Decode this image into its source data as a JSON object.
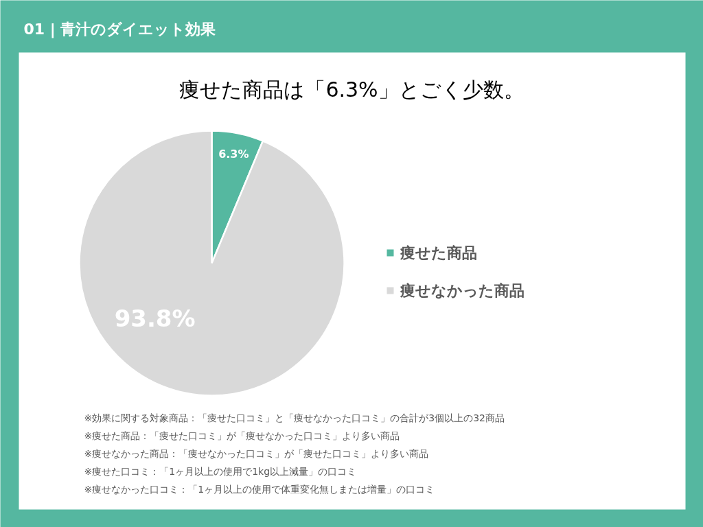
{
  "chart_data": {
    "type": "pie",
    "title": "01 | 青汁のダイエット効果",
    "subtitle": "痩せた商品は「6.3%」とごく少数。",
    "categories": [
      "痩せた商品",
      "痩せなかった商品"
    ],
    "values": [
      6.3,
      93.8
    ],
    "colors": [
      "#55b8a0",
      "#d9d9d9"
    ],
    "value_labels": [
      "6.3%",
      "93.8%"
    ],
    "legend": "right",
    "annotations": [
      "※効果に関する対象商品：「痩せた口コミ」と「痩せなかった口コミ」の合計が3個以上の32商品",
      "※痩せた商品：「痩せた口コミ」が「痩せなかった口コミ」より多い商品",
      "※痩せなかった商品：「痩せなかった口コミ」が「痩せた口コミ」より多い商品",
      "※痩せた口コミ：「1ヶ月以上の使用で1kg以上減量」の口コミ",
      "※痩せなかった口コミ：「1ヶ月以上の使用で体重変化無しまたは増量」の口コミ"
    ]
  }
}
